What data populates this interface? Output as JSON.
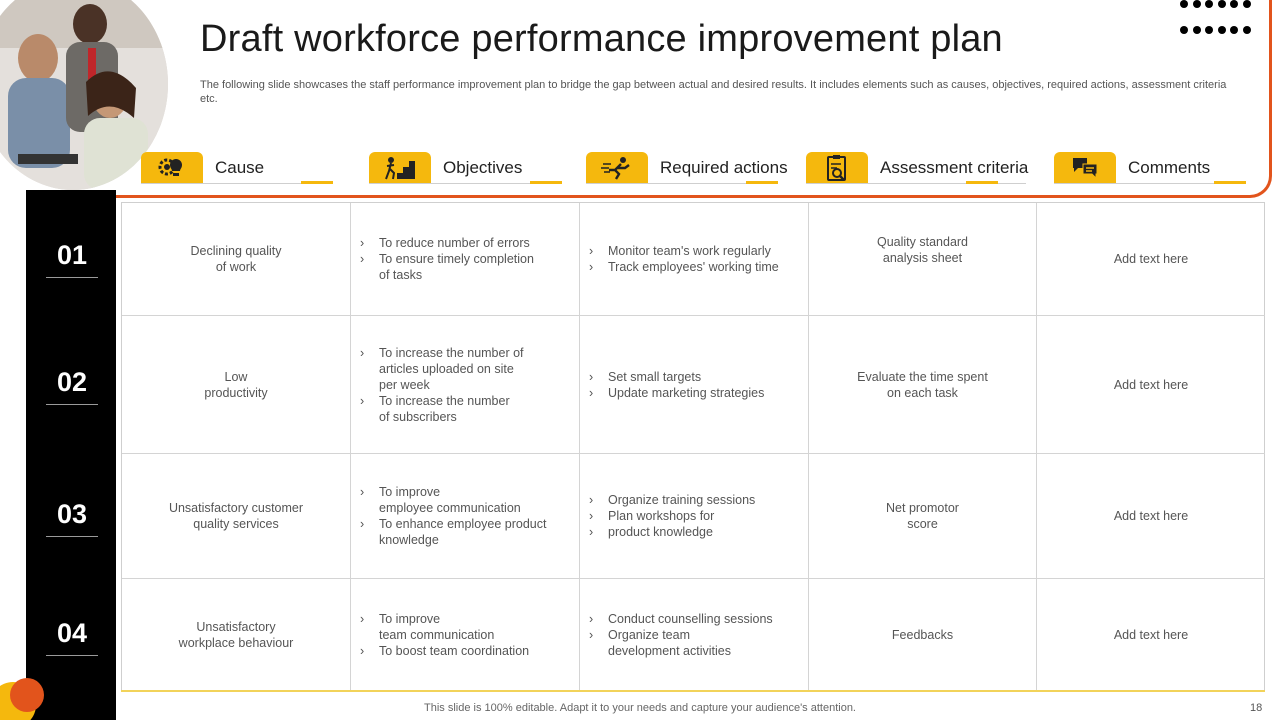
{
  "slide": {
    "title": "Draft workforce performance improvement plan",
    "subtitle": "The following slide showcases the staff performance improvement plan to bridge the gap between actual and desired results. It includes elements such as causes, objectives, required actions, assessment criteria etc.",
    "footer": "This slide is 100% editable. Adapt it to your needs and capture your audience's attention.",
    "page_number": "18"
  },
  "colors": {
    "accent_yellow": "#f5b80d",
    "accent_orange": "#e2541c",
    "band": "#000000"
  },
  "columns": [
    {
      "label": "Cause",
      "icon": "gear-bulb-icon"
    },
    {
      "label": "Objectives",
      "icon": "goal-steps-icon"
    },
    {
      "label": "Required actions",
      "icon": "running-person-icon"
    },
    {
      "label": "Assessment criteria",
      "icon": "clipboard-search-icon"
    },
    {
      "label": "Comments",
      "icon": "chat-bubbles-icon"
    }
  ],
  "rows": [
    {
      "num": "01",
      "cause": "Declining quality\nof work",
      "objectives": [
        "To reduce number of errors",
        "To ensure timely completion\nof tasks"
      ],
      "actions": [
        "Monitor team's work regularly",
        "Track employees' working time"
      ],
      "assessment": "Quality standard\nanalysis sheet",
      "comments": "Add text here"
    },
    {
      "num": "02",
      "cause": "Low\nproductivity",
      "objectives": [
        "To increase the number of\narticles uploaded on site\nper week",
        "To increase the number\nof subscribers"
      ],
      "actions": [
        "Set small targets",
        "Update marketing strategies"
      ],
      "assessment": "Evaluate the time spent\non each task",
      "comments": "Add text here"
    },
    {
      "num": "03",
      "cause": "Unsatisfactory customer\nquality services",
      "objectives": [
        "To improve\nemployee communication",
        "To enhance employee product\nknowledge"
      ],
      "actions": [
        "Organize training sessions",
        "Plan workshops for",
        "product knowledge"
      ],
      "assessment": "Net promotor\nscore",
      "comments": "Add text here"
    },
    {
      "num": "04",
      "cause": "Unsatisfactory\nworkplace behaviour",
      "objectives": [
        "To improve\nteam communication",
        "To boost team coordination"
      ],
      "actions": [
        "Conduct counselling sessions",
        "Organize team\ndevelopment  activities"
      ],
      "assessment": "Feedbacks",
      "comments": "Add text here"
    }
  ]
}
